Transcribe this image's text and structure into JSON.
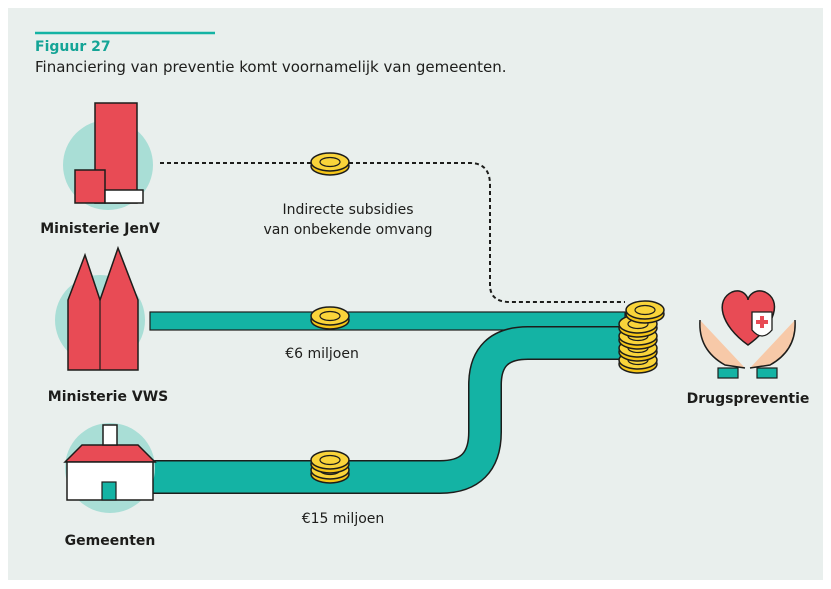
{
  "figure": {
    "label": "Figuur 27",
    "caption": "Financiering van preventie komt voornamelijk van gemeenten."
  },
  "nodes": [
    {
      "label": "Ministerie JenV"
    },
    {
      "label": "Ministerie VWS"
    },
    {
      "label": "Gemeenten"
    },
    {
      "label": "Drugspreventie"
    }
  ],
  "flows": [
    {
      "label_lines": [
        "Indirecte subsidies",
        "van onbekende omvang"
      ]
    },
    {
      "label": "€6 miljoen"
    },
    {
      "label": "€15 miljoen"
    }
  ]
}
